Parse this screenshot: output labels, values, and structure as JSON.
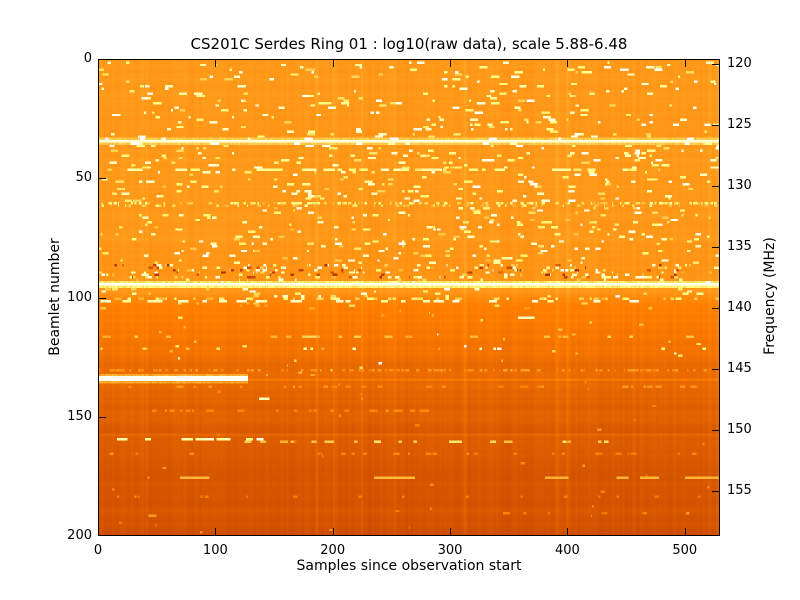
{
  "figure": {
    "background_color": "#ffffff",
    "frame_color": "#000000",
    "text_color": "#000000"
  },
  "chart_data": {
    "type": "heatmap",
    "title": "CS201C Serdes Ring 01 : log10(raw data), scale 5.88-6.48",
    "xlabel": "Samples since observation start",
    "ylabel_left": "Beamlet number",
    "ylabel_right": "Frequency (MHz)",
    "colormap": "afmhot",
    "scale_min": 5.88,
    "scale_max": 6.48,
    "x_range": [
      0,
      530
    ],
    "y_range": [
      0,
      200
    ],
    "x_ticks": [
      0,
      100,
      200,
      300,
      400,
      500
    ],
    "y_ticks_left": [
      0,
      50,
      100,
      150,
      200
    ],
    "freq_axis": {
      "ticks": [
        120,
        125,
        130,
        135,
        140,
        145,
        150,
        155
      ],
      "start_beamlet": 2.1,
      "beamlets_per_mhz": 5.115
    },
    "grid": false,
    "seed": 1234,
    "noise": {
      "column": 0.012,
      "row": 0.008
    },
    "background_profile": [
      [
        0,
        0.547
      ],
      [
        15,
        0.55
      ],
      [
        30,
        0.551
      ],
      [
        40,
        0.553
      ],
      [
        55,
        0.551
      ],
      [
        70,
        0.549
      ],
      [
        84,
        0.545
      ],
      [
        90,
        0.54
      ],
      [
        93,
        0.537
      ],
      [
        97,
        0.547
      ],
      [
        100,
        0.523
      ],
      [
        104,
        0.503
      ],
      [
        110,
        0.495
      ],
      [
        118,
        0.484
      ],
      [
        126,
        0.468
      ],
      [
        132,
        0.457
      ],
      [
        140,
        0.447
      ],
      [
        150,
        0.437
      ],
      [
        162,
        0.429
      ],
      [
        175,
        0.425
      ],
      [
        188,
        0.419
      ],
      [
        196,
        0.414
      ],
      [
        200,
        0.41
      ]
    ],
    "vertical_streaks": [
      {
        "x": 37,
        "w": 2,
        "dv": 0.012
      },
      {
        "x": 185,
        "w": 3,
        "dv": 0.02
      },
      {
        "x": 200,
        "w": 2,
        "dv": 0.013
      },
      {
        "x": 224,
        "w": 2,
        "dv": 0.012
      },
      {
        "x": 252,
        "w": 2,
        "dv": 0.011
      },
      {
        "x": 312,
        "w": 3,
        "dv": 0.017
      },
      {
        "x": 390,
        "w": 4,
        "dv": 0.02
      },
      {
        "x": 399,
        "w": 2,
        "dv": 0.015
      },
      {
        "x": 455,
        "w": 3,
        "dv": 0.013
      },
      {
        "x": 520,
        "w": 2,
        "dv": 0.011
      },
      {
        "x": 527,
        "w": 3,
        "dv": 0.012
      },
      {
        "x": 230,
        "w": 14,
        "dv": -0.007
      },
      {
        "x": 262,
        "w": 10,
        "dv": -0.006
      },
      {
        "x": 428,
        "w": 10,
        "dv": -0.005
      }
    ],
    "speckle_regions": [
      {
        "rows": [
          1,
          33
        ],
        "per_row": 7,
        "len": [
          2,
          7
        ],
        "palette": [
          [
            0.85,
            1.0,
            0.5
          ],
          [
            0.65,
            0.8,
            0.5
          ]
        ]
      },
      {
        "rows": [
          35,
          59
        ],
        "per_row": 9,
        "len": [
          2,
          7
        ],
        "palette": [
          [
            0.85,
            1.0,
            0.5
          ],
          [
            0.65,
            0.8,
            0.5
          ]
        ]
      },
      {
        "rows": [
          62,
          85
        ],
        "per_row": 9,
        "len": [
          2,
          6
        ],
        "palette": [
          [
            0.85,
            1.0,
            0.45
          ],
          [
            0.63,
            0.8,
            0.55
          ]
        ]
      },
      {
        "rows": [
          86,
          91
        ],
        "per_row": 45,
        "len": [
          1,
          4
        ],
        "palette": [
          [
            0.75,
            1.0,
            0.5
          ],
          [
            0.6,
            0.75,
            0.3
          ],
          [
            0.34,
            0.45,
            0.2
          ]
        ]
      },
      {
        "rows": [
          92,
          93
        ],
        "per_row": 12,
        "len": [
          1,
          4
        ],
        "palette": [
          [
            0.75,
            1.0,
            0.6
          ],
          [
            0.6,
            0.75,
            0.4
          ]
        ]
      },
      {
        "rows": [
          96,
          99
        ],
        "per_row": 8,
        "len": [
          2,
          5
        ],
        "palette": [
          [
            0.8,
            1.0,
            0.5
          ],
          [
            0.62,
            0.78,
            0.5
          ]
        ]
      },
      {
        "rows": [
          102,
          104
        ],
        "per_row": 4,
        "len": [
          2,
          5
        ],
        "palette": [
          [
            0.55,
            0.7,
            1.0
          ]
        ]
      },
      {
        "rows": [
          105,
          132
        ],
        "per_row": 1.5,
        "len": [
          1,
          4
        ],
        "palette": [
          [
            0.55,
            0.72,
            0.85
          ],
          [
            0.85,
            1.0,
            0.15
          ]
        ]
      },
      {
        "rows": [
          135,
          200
        ],
        "per_row": 0.5,
        "len": [
          1,
          4
        ],
        "palette": [
          [
            0.48,
            0.56,
            1.0
          ]
        ]
      }
    ],
    "dash_rows": [
      {
        "row": 46,
        "coverage": 0.45,
        "len": [
          3,
          10
        ],
        "value": [
          0.7,
          0.85
        ]
      },
      {
        "row": 60,
        "coverage": 0.55,
        "len": [
          1,
          3
        ],
        "value": [
          0.58,
          0.82
        ]
      },
      {
        "row": 61,
        "coverage": 0.3,
        "len": [
          1,
          3
        ],
        "value": [
          0.55,
          0.75
        ]
      },
      {
        "row": 100,
        "coverage": 0.35,
        "len": [
          2,
          6
        ],
        "value": [
          0.6,
          0.8
        ]
      },
      {
        "row": 101,
        "coverage": 0.3,
        "len": [
          4,
          9
        ],
        "value": [
          0.8,
          0.95
        ]
      },
      {
        "row": 116,
        "coverage": 0.2,
        "len": [
          3,
          7
        ],
        "value": [
          0.58,
          0.68
        ]
      },
      {
        "row": 121,
        "coverage": 0.06,
        "len": [
          1,
          3
        ],
        "value": [
          0.6,
          0.9
        ]
      },
      {
        "row": 130,
        "coverage": 0.5,
        "len": [
          1,
          3
        ],
        "value": [
          0.5,
          0.57
        ]
      },
      {
        "row": 137,
        "coverage": 0.22,
        "len": [
          2,
          5
        ],
        "value": [
          0.5,
          0.56
        ]
      },
      {
        "row": 147,
        "coverage": 0.45,
        "len": [
          2,
          4
        ],
        "value": [
          0.49,
          0.53
        ],
        "x": [
          45,
          280
        ]
      },
      {
        "row": 159,
        "coverage": 0.35,
        "len": [
          4,
          10
        ],
        "value": [
          0.75,
          1.0
        ],
        "x": [
          0,
          200
        ]
      },
      {
        "row": 160,
        "coverage": 0.25,
        "len": [
          3,
          7
        ],
        "value": [
          0.6,
          0.72
        ],
        "x": [
          100,
          440
        ]
      },
      {
        "row": 165,
        "coverage": 0.15,
        "len": [
          2,
          5
        ],
        "value": [
          0.48,
          0.53
        ]
      },
      {
        "row": 183,
        "coverage": 0.08,
        "len": [
          2,
          4
        ],
        "value": [
          0.47,
          0.51
        ]
      },
      {
        "row": 190,
        "coverage": 0.1,
        "len": [
          2,
          5
        ],
        "value": [
          0.48,
          0.52
        ],
        "x": [
          330,
          530
        ]
      }
    ],
    "explicit_dash_rows": [
      {
        "row": 175,
        "value": [
          0.6,
          0.66
        ],
        "segments": [
          [
            70,
            95
          ],
          [
            235,
            270
          ],
          [
            381,
            401
          ],
          [
            442,
            452
          ],
          [
            462,
            478
          ],
          [
            500,
            530
          ]
        ]
      },
      {
        "row": 142,
        "value": [
          0.8,
          0.88
        ],
        "segments": [
          [
            137,
            146
          ]
        ]
      },
      {
        "row": 108,
        "value": [
          0.85,
          0.95
        ],
        "segments": [
          [
            358,
            372
          ]
        ]
      },
      {
        "row": 191,
        "value": [
          0.52,
          0.58
        ],
        "segments": [
          [
            43,
            50
          ]
        ]
      }
    ],
    "tint_rows": [
      {
        "row": 134,
        "x": [
          128,
          530
        ],
        "dv": 0.03
      },
      {
        "row": 95,
        "x": [
          0,
          530
        ],
        "dv": 0.02
      },
      {
        "row": 157,
        "x": [
          0,
          530
        ],
        "dv": 0.018
      }
    ],
    "lines": [
      {
        "row": 34,
        "x": [
          0,
          530
        ],
        "value": 0.95,
        "thickness": 1,
        "glow": 0.1
      },
      {
        "row": 94,
        "x": [
          0,
          530
        ],
        "value": 1.0,
        "thickness": 1,
        "glow": 0.16
      },
      {
        "row": 133,
        "x": [
          0,
          128
        ],
        "value": 1.0,
        "thickness": 2,
        "glow": 0.12
      }
    ]
  }
}
